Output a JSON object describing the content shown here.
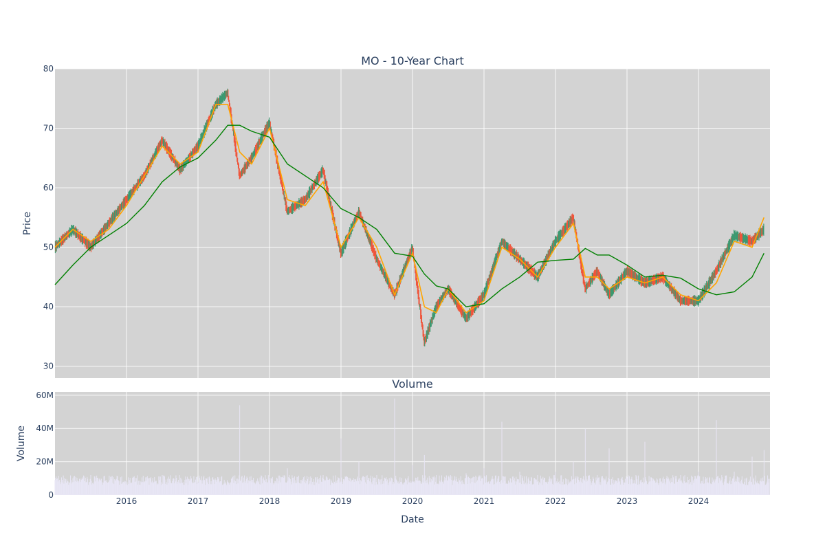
{
  "chart_data": [
    {
      "type": "candlestick",
      "title": "MO - 10-Year Chart",
      "ylabel": "Price",
      "ylim": [
        28,
        80
      ],
      "yticks": [
        30,
        40,
        50,
        60,
        70,
        80
      ],
      "grid": true,
      "colors": {
        "background": "#d3d3d3",
        "up": "#3d9970",
        "down": "#ef553b",
        "ma_short": "#ffa500",
        "ma_long": "#008000"
      },
      "x": [
        "2015-01",
        "2015-04",
        "2015-07",
        "2015-10",
        "2016-01",
        "2016-04",
        "2016-07",
        "2016-10",
        "2017-01",
        "2017-04",
        "2017-06",
        "2017-08",
        "2017-10",
        "2018-01",
        "2018-04",
        "2018-07",
        "2018-10",
        "2019-01",
        "2019-04",
        "2019-07",
        "2019-10",
        "2020-01",
        "2020-03",
        "2020-05",
        "2020-07",
        "2020-10",
        "2021-01",
        "2021-04",
        "2021-07",
        "2021-10",
        "2022-01",
        "2022-04",
        "2022-06",
        "2022-08",
        "2022-10",
        "2023-01",
        "2023-04",
        "2023-07",
        "2023-10",
        "2024-01",
        "2024-04",
        "2024-07",
        "2024-10",
        "2024-12"
      ],
      "close": [
        50,
        53,
        50,
        54,
        58,
        62,
        68,
        63,
        67,
        74,
        76,
        62,
        65,
        71,
        56,
        58,
        63,
        49,
        56,
        48,
        42,
        50,
        34,
        40,
        43,
        38,
        42,
        51,
        48,
        45,
        51,
        55,
        43,
        46,
        42,
        46,
        44,
        45,
        41,
        41,
        46,
        52,
        51,
        53
      ],
      "ma_short": [
        50,
        53,
        51,
        53,
        57,
        62,
        67,
        64,
        66,
        74,
        74,
        66,
        64,
        70,
        58,
        57,
        61,
        50,
        55,
        50,
        42,
        49,
        40,
        39,
        43,
        39,
        41,
        50,
        48,
        45,
        50,
        54,
        45,
        45,
        43,
        45,
        44,
        45,
        42,
        41,
        44,
        51,
        50,
        55
      ],
      "ma_long": [
        43.7,
        47,
        50,
        52,
        54,
        57,
        61,
        63.5,
        65,
        68,
        70.5,
        70.5,
        69.5,
        68.5,
        64,
        62,
        60,
        56.5,
        55,
        53,
        49,
        48.5,
        45.5,
        43.5,
        43,
        40,
        40.5,
        43,
        45,
        47.5,
        47.8,
        48,
        49.8,
        48.7,
        48.7,
        47,
        45,
        45.3,
        44.8,
        43,
        42,
        42.5,
        45,
        49
      ]
    },
    {
      "type": "bar",
      "title": "Volume",
      "ylabel": "Volume",
      "xlabel": "Date",
      "ylim": [
        0,
        62000000
      ],
      "yticks": [
        0,
        20000000,
        40000000,
        60000000
      ],
      "ytick_labels": [
        "0",
        "20M",
        "40M",
        "60M"
      ],
      "xtick_labels": [
        "2016",
        "2017",
        "2018",
        "2019",
        "2020",
        "2021",
        "2022",
        "2023",
        "2024"
      ],
      "xticks": [
        "2016-01",
        "2017-01",
        "2018-01",
        "2019-01",
        "2020-01",
        "2021-01",
        "2022-01",
        "2023-01",
        "2024-01"
      ],
      "colors": {
        "bar": "#e8e6f5",
        "background": "#d3d3d3"
      },
      "x": [
        "2015-01",
        "2015-04",
        "2015-07",
        "2015-10",
        "2016-01",
        "2016-04",
        "2016-07",
        "2016-10",
        "2017-01",
        "2017-04",
        "2017-06",
        "2017-08",
        "2017-10",
        "2018-01",
        "2018-04",
        "2018-07",
        "2018-10",
        "2019-01",
        "2019-04",
        "2019-07",
        "2019-10",
        "2020-01",
        "2020-03",
        "2020-05",
        "2020-07",
        "2020-10",
        "2021-01",
        "2021-04",
        "2021-07",
        "2021-10",
        "2022-01",
        "2022-04",
        "2022-06",
        "2022-08",
        "2022-10",
        "2023-01",
        "2023-04",
        "2023-07",
        "2023-10",
        "2024-01",
        "2024-04",
        "2024-07",
        "2024-10",
        "2024-12"
      ],
      "values": [
        9000000,
        10000000,
        12000000,
        8000000,
        9000000,
        8000000,
        12000000,
        7000000,
        8000000,
        9000000,
        8000000,
        54000000,
        9000000,
        11000000,
        16000000,
        9000000,
        12000000,
        34000000,
        20000000,
        12000000,
        58000000,
        18000000,
        24000000,
        12000000,
        11000000,
        13000000,
        16000000,
        44000000,
        14000000,
        12000000,
        14000000,
        20000000,
        40000000,
        12000000,
        28000000,
        10000000,
        32000000,
        10000000,
        12000000,
        14000000,
        45000000,
        14000000,
        23000000,
        27000000
      ]
    }
  ]
}
